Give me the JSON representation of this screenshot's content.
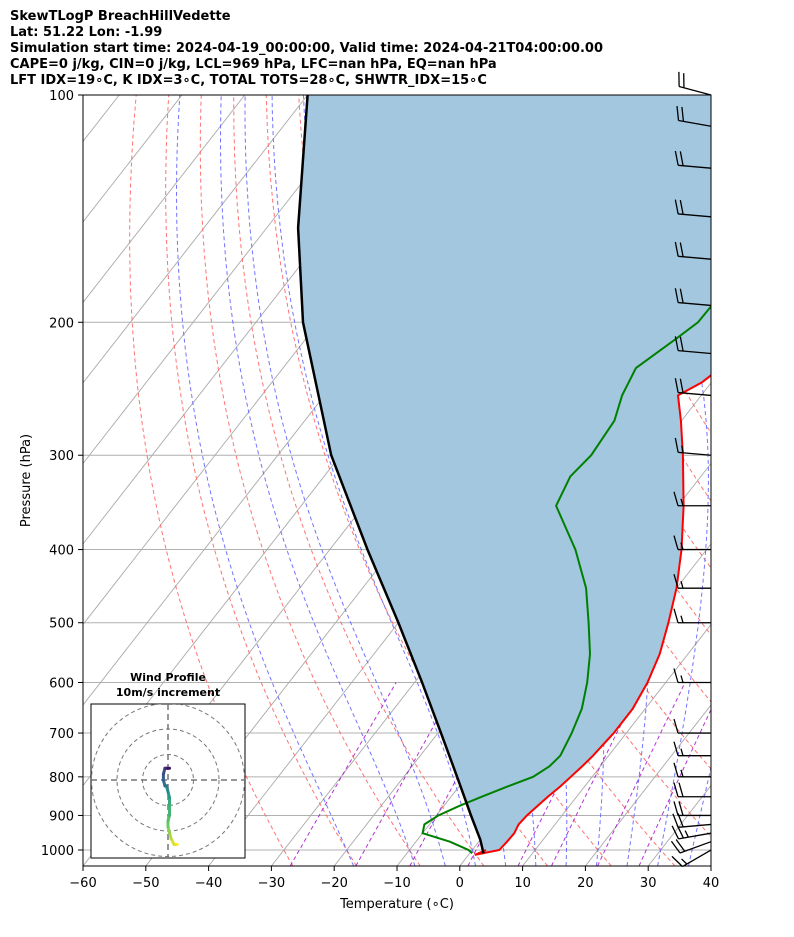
{
  "header": {
    "line1": "SkewTLogP BreachHillVedette",
    "line2": "Lat: 51.22   Lon: -1.99",
    "line3": "Simulation start time: 2024-04-19_00:00:00, Valid time: 2024-04-21T04:00:00.00",
    "line4": "CAPE=0 j/kg, CIN=0 j/kg, LCL=969 hPa, LFC=nan hPa, EQ=nan hPa",
    "line5": "LFT IDX=19∘C, K IDX=3∘C, TOTAL TOTS=28∘C, SHWTR_IDX=15∘C"
  },
  "chart_data": {
    "type": "skewt-logp",
    "xlabel": "Temperature (∘C)",
    "ylabel": "Pressure (hPa)",
    "xlim": [
      -60,
      40
    ],
    "ylim": [
      1050,
      100
    ],
    "x_ticks": [
      -60,
      -50,
      -40,
      -30,
      -20,
      -10,
      0,
      10,
      20,
      30,
      40
    ],
    "y_ticks": [
      100,
      200,
      300,
      400,
      500,
      600,
      700,
      800,
      900,
      1000
    ],
    "grid": true,
    "series": [
      {
        "role": "temperature",
        "color": "#ff0000",
        "points": [
          [
            1000,
            2.2
          ],
          [
            1015,
            1.0
          ],
          [
            1000,
            4.3
          ],
          [
            975,
            4.5
          ],
          [
            950,
            4.6
          ],
          [
            925,
            4.2
          ],
          [
            900,
            4.4
          ],
          [
            875,
            4.9
          ],
          [
            850,
            5.4
          ],
          [
            825,
            6.1
          ],
          [
            800,
            6.6
          ],
          [
            775,
            7.1
          ],
          [
            750,
            7.5
          ],
          [
            700,
            8.0
          ],
          [
            650,
            8.0
          ],
          [
            600,
            7.1
          ],
          [
            550,
            5.5
          ],
          [
            500,
            3.0
          ],
          [
            450,
            0.0
          ],
          [
            400,
            -4.0
          ],
          [
            350,
            -9.1
          ],
          [
            300,
            -15.5
          ],
          [
            270,
            -20.1
          ],
          [
            250,
            -23.7
          ],
          [
            240,
            -21.5
          ],
          [
            220,
            -19.2
          ],
          [
            200,
            -16.4
          ],
          [
            180,
            -11.9
          ],
          [
            160,
            -7.5
          ],
          [
            150,
            -5.1
          ],
          [
            135,
            -2.0
          ],
          [
            120,
            1.6
          ],
          [
            100,
            6.8
          ]
        ]
      },
      {
        "role": "dewpoint",
        "color": "#008000",
        "points": [
          [
            1010,
            0.4
          ],
          [
            1000,
            -0.6
          ],
          [
            975,
            -4.6
          ],
          [
            950,
            -10.0
          ],
          [
            925,
            -10.8
          ],
          [
            900,
            -9.7
          ],
          [
            875,
            -7.6
          ],
          [
            850,
            -5.1
          ],
          [
            825,
            -2.4
          ],
          [
            800,
            0.6
          ],
          [
            775,
            1.9
          ],
          [
            750,
            2.3
          ],
          [
            700,
            1.3
          ],
          [
            650,
            -0.1
          ],
          [
            600,
            -2.5
          ],
          [
            550,
            -5.6
          ],
          [
            500,
            -9.7
          ],
          [
            450,
            -14.4
          ],
          [
            400,
            -20.9
          ],
          [
            350,
            -29.4
          ],
          [
            320,
            -30.8
          ],
          [
            300,
            -30.1
          ],
          [
            270,
            -30.7
          ],
          [
            250,
            -32.6
          ],
          [
            230,
            -33.8
          ],
          [
            210,
            -31.0
          ],
          [
            200,
            -29.6
          ],
          [
            190,
            -29.5
          ],
          [
            170,
            -32.9
          ],
          [
            160,
            -35.6
          ],
          [
            130,
            -36.3
          ],
          [
            100,
            -37.8
          ]
        ]
      },
      {
        "role": "parcel",
        "color": "#000000",
        "points": [
          [
            1010,
            2.2
          ],
          [
            969,
            0.0
          ],
          [
            900,
            -4.5
          ],
          [
            800,
            -11.5
          ],
          [
            700,
            -19.5
          ],
          [
            600,
            -28.8
          ],
          [
            500,
            -40.0
          ],
          [
            400,
            -54.0
          ],
          [
            300,
            -71.5
          ],
          [
            200,
            -92.5
          ],
          [
            150,
            -105.0
          ],
          [
            100,
            -120.0
          ]
        ]
      }
    ],
    "wind_barbs": [
      {
        "p": 1000,
        "speed_kt": 15,
        "dir": 240
      },
      {
        "p": 975,
        "speed_kt": 20,
        "dir": 250
      },
      {
        "p": 950,
        "speed_kt": 25,
        "dir": 260
      },
      {
        "p": 925,
        "speed_kt": 20,
        "dir": 265
      },
      {
        "p": 900,
        "speed_kt": 20,
        "dir": 270
      },
      {
        "p": 850,
        "speed_kt": 20,
        "dir": 270
      },
      {
        "p": 800,
        "speed_kt": 15,
        "dir": 270
      },
      {
        "p": 750,
        "speed_kt": 15,
        "dir": 270
      },
      {
        "p": 700,
        "speed_kt": 10,
        "dir": 270
      },
      {
        "p": 600,
        "speed_kt": 15,
        "dir": 270
      },
      {
        "p": 500,
        "speed_kt": 15,
        "dir": 270
      },
      {
        "p": 450,
        "speed_kt": 15,
        "dir": 270
      },
      {
        "p": 400,
        "speed_kt": 15,
        "dir": 270
      },
      {
        "p": 350,
        "speed_kt": 15,
        "dir": 270
      },
      {
        "p": 300,
        "speed_kt": 15,
        "dir": 275
      },
      {
        "p": 250,
        "speed_kt": 20,
        "dir": 275
      },
      {
        "p": 220,
        "speed_kt": 20,
        "dir": 275
      },
      {
        "p": 190,
        "speed_kt": 20,
        "dir": 275
      },
      {
        "p": 165,
        "speed_kt": 20,
        "dir": 275
      },
      {
        "p": 145,
        "speed_kt": 20,
        "dir": 275
      },
      {
        "p": 125,
        "speed_kt": 20,
        "dir": 275
      },
      {
        "p": 110,
        "speed_kt": 20,
        "dir": 280
      },
      {
        "p": 100,
        "speed_kt": 20,
        "dir": 285
      }
    ],
    "hodograph": {
      "title_line1": "Wind Profile",
      "title_line2": "10m/s increment",
      "rings_ms": [
        10,
        20,
        30
      ],
      "uv": [
        [
          6,
          -11
        ],
        [
          4,
          -11
        ],
        [
          2,
          -10
        ],
        [
          1,
          -9
        ],
        [
          0,
          -8
        ],
        [
          0,
          -7
        ],
        [
          1,
          -6
        ],
        [
          1,
          -4
        ],
        [
          1,
          -3
        ],
        [
          0,
          -2
        ],
        [
          -1,
          -1
        ],
        [
          -2,
          -1
        ],
        [
          -3,
          0
        ],
        [
          -3,
          1
        ],
        [
          -2,
          2
        ],
        [
          -1,
          2
        ],
        [
          0,
          2
        ],
        [
          1,
          2
        ]
      ]
    },
    "colors": {
      "cape_cin_fill": "#a3c7df",
      "dry_adiabats": "#ff6464",
      "moist_adiabats": "#6464ff",
      "mixing_ratio": "#a000c8",
      "isotherms": "#a9a9a9"
    }
  }
}
